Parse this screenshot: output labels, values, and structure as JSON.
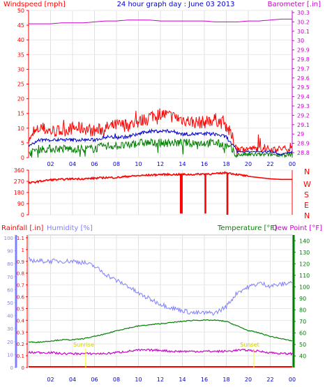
{
  "header": {
    "left_title": "Windspeed [mph]",
    "center_title": "24 hour graph day : June 03 2013",
    "right_title": "Barometer [.in]"
  },
  "compass_labels": [
    "N",
    "W",
    "S",
    "E",
    "N"
  ],
  "bottom_header": {
    "rain_label": "Rainfall [.in]",
    "hum_label": "Humidity [%]",
    "temp_label": "Temperature [°F]",
    "dew_label": "Dew Point [°F]"
  },
  "sun_labels": {
    "sunrise": "Sunrise",
    "sunset": "Sunset"
  },
  "x_ticks": [
    "02",
    "04",
    "06",
    "08",
    "10",
    "12",
    "14",
    "16",
    "18",
    "20",
    "22",
    "00"
  ],
  "axis_ticks": {
    "wind": [
      "0",
      "5",
      "10",
      "15",
      "20",
      "25",
      "30",
      "35",
      "40",
      "45",
      "50"
    ],
    "baro": [
      "28.8",
      "28.9",
      "29",
      "29.1",
      "29.2",
      "29.3",
      "29.4",
      "29.5",
      "29.6",
      "29.7",
      "29.8",
      "29.9",
      "30",
      "30.1",
      "30.2",
      "30.3"
    ],
    "dir": [
      "0",
      "90",
      "180",
      "270",
      "360"
    ],
    "hum": [
      "0",
      "10",
      "20",
      "30",
      "40",
      "50",
      "60",
      "70",
      "80",
      "90",
      "100"
    ],
    "rain": [
      "0",
      "0.1",
      "0.2",
      "0.3",
      "0.4",
      "0.5",
      "0.6",
      "0.7",
      "0.8",
      "0.9",
      "1",
      "1.1"
    ],
    "temp": [
      "40",
      "50",
      "60",
      "70",
      "80",
      "90",
      "100",
      "110",
      "120",
      "130",
      "140"
    ]
  },
  "colors": {
    "wind_gust": "#ff0000",
    "wind_avg": "#0000cc",
    "wind_low": "#008000",
    "barometer": "#cc00cc",
    "direction": "#ff0000",
    "humidity": "#8080ff",
    "temperature": "#008000",
    "dewpoint": "#cc00cc",
    "rainfall": "#ff0000",
    "hum_axis": "#8080ff",
    "sun": "#ffff00"
  },
  "chart_data": [
    {
      "type": "line",
      "title": "24 hour graph day : June 03 2013",
      "xlabel": "",
      "ylabel": "Windspeed [mph]",
      "y2label": "Barometer [.in]",
      "grid": true,
      "ylim": [
        0,
        50
      ],
      "y2lim": [
        28.8,
        30.3
      ],
      "x": [
        0,
        1,
        2,
        3,
        4,
        5,
        6,
        7,
        8,
        9,
        10,
        11,
        12,
        13,
        14,
        15,
        16,
        17,
        18,
        19,
        20,
        21,
        22,
        23,
        24
      ],
      "series": [
        {
          "name": "gust",
          "axis": "left",
          "values": [
            6,
            10,
            9,
            9,
            10,
            10,
            9,
            10,
            11,
            11,
            12,
            14,
            15,
            14,
            13,
            12,
            12,
            13,
            11,
            3,
            3,
            3,
            3,
            3,
            3
          ]
        },
        {
          "name": "average",
          "axis": "left",
          "values": [
            4,
            6,
            6,
            6,
            6,
            6,
            6,
            7,
            7,
            7,
            8,
            9,
            9,
            9,
            8,
            8,
            8,
            8,
            7,
            2,
            2,
            2,
            2,
            1,
            2
          ]
        },
        {
          "name": "low",
          "axis": "left",
          "values": [
            2,
            3,
            3,
            3,
            3,
            3,
            3,
            4,
            4,
            4,
            5,
            5,
            5,
            5,
            5,
            5,
            5,
            5,
            4,
            1,
            1,
            1,
            1,
            1,
            1
          ]
        },
        {
          "name": "barometer",
          "axis": "right",
          "values": [
            30.18,
            30.18,
            30.18,
            30.19,
            30.19,
            30.19,
            30.2,
            30.21,
            30.21,
            30.22,
            30.22,
            30.22,
            30.21,
            30.21,
            30.21,
            30.21,
            30.21,
            30.2,
            30.2,
            30.2,
            30.21,
            30.21,
            30.22,
            30.23,
            30.23
          ]
        }
      ]
    },
    {
      "type": "line",
      "ylabel": "",
      "ylim": [
        0,
        360
      ],
      "y2_labels": [
        "N",
        "W",
        "S",
        "E",
        "N"
      ],
      "grid": true,
      "x": [
        0,
        1,
        2,
        3,
        4,
        5,
        6,
        7,
        8,
        9,
        10,
        11,
        12,
        13,
        14,
        15,
        16,
        17,
        18,
        19,
        20,
        21,
        22,
        23,
        24
      ],
      "series": [
        {
          "name": "wind direction",
          "values": [
            255,
            270,
            282,
            285,
            290,
            290,
            295,
            300,
            300,
            310,
            315,
            320,
            325,
            325,
            325,
            325,
            330,
            330,
            340,
            325,
            310,
            300,
            290,
            285,
            285
          ]
        }
      ],
      "dips": [
        {
          "x": 13.9,
          "y": 10
        },
        {
          "x": 16.1,
          "y": 10
        },
        {
          "x": 18.1,
          "y": 0
        }
      ]
    },
    {
      "type": "line",
      "grid": true,
      "axes": {
        "rainfall": {
          "label": "Rainfall [.in]",
          "range": [
            0,
            1.1
          ]
        },
        "humidity": {
          "label": "Humidity [%]",
          "range": [
            0,
            100
          ]
        },
        "temperature": {
          "label": "Temperature [°F]",
          "range": [
            30,
            145
          ]
        },
        "dewpoint": {
          "label": "Dew Point [°F]",
          "range": [
            30,
            145
          ]
        }
      },
      "x": [
        0,
        1,
        2,
        3,
        4,
        5,
        6,
        7,
        8,
        9,
        10,
        11,
        12,
        13,
        14,
        15,
        16,
        17,
        18,
        19,
        20,
        21,
        22,
        23,
        24
      ],
      "series": [
        {
          "name": "Humidity",
          "axis": "humidity",
          "values": [
            83,
            82,
            82,
            82,
            82,
            81,
            78,
            72,
            67,
            63,
            57,
            53,
            49,
            46,
            44,
            42,
            42,
            42,
            47,
            58,
            62,
            65,
            63,
            64,
            66
          ]
        },
        {
          "name": "Temperature",
          "axis": "temperature",
          "values": [
            52,
            52,
            53,
            54,
            54,
            55,
            57,
            59,
            62,
            64,
            66,
            67,
            68,
            69,
            70,
            71,
            71,
            71,
            70,
            66,
            62,
            60,
            57,
            55,
            53
          ]
        },
        {
          "name": "Dew Point",
          "axis": "dewpoint",
          "values": [
            43,
            43,
            43,
            42,
            42,
            42,
            42,
            42,
            43,
            44,
            45,
            45,
            45,
            44,
            44,
            44,
            44,
            44,
            44,
            45,
            45,
            44,
            43,
            42,
            42
          ]
        },
        {
          "name": "Rainfall",
          "axis": "rainfall",
          "values": [
            0,
            0,
            0,
            0,
            0,
            0,
            0,
            0,
            0,
            0,
            0,
            0,
            0,
            0,
            0,
            0,
            0,
            0,
            0,
            0,
            0,
            0,
            0,
            0,
            0
          ]
        }
      ],
      "annotations": [
        {
          "text": "Sunrise",
          "x": 5.2
        },
        {
          "text": "Sunset",
          "x": 20.5
        }
      ]
    }
  ]
}
